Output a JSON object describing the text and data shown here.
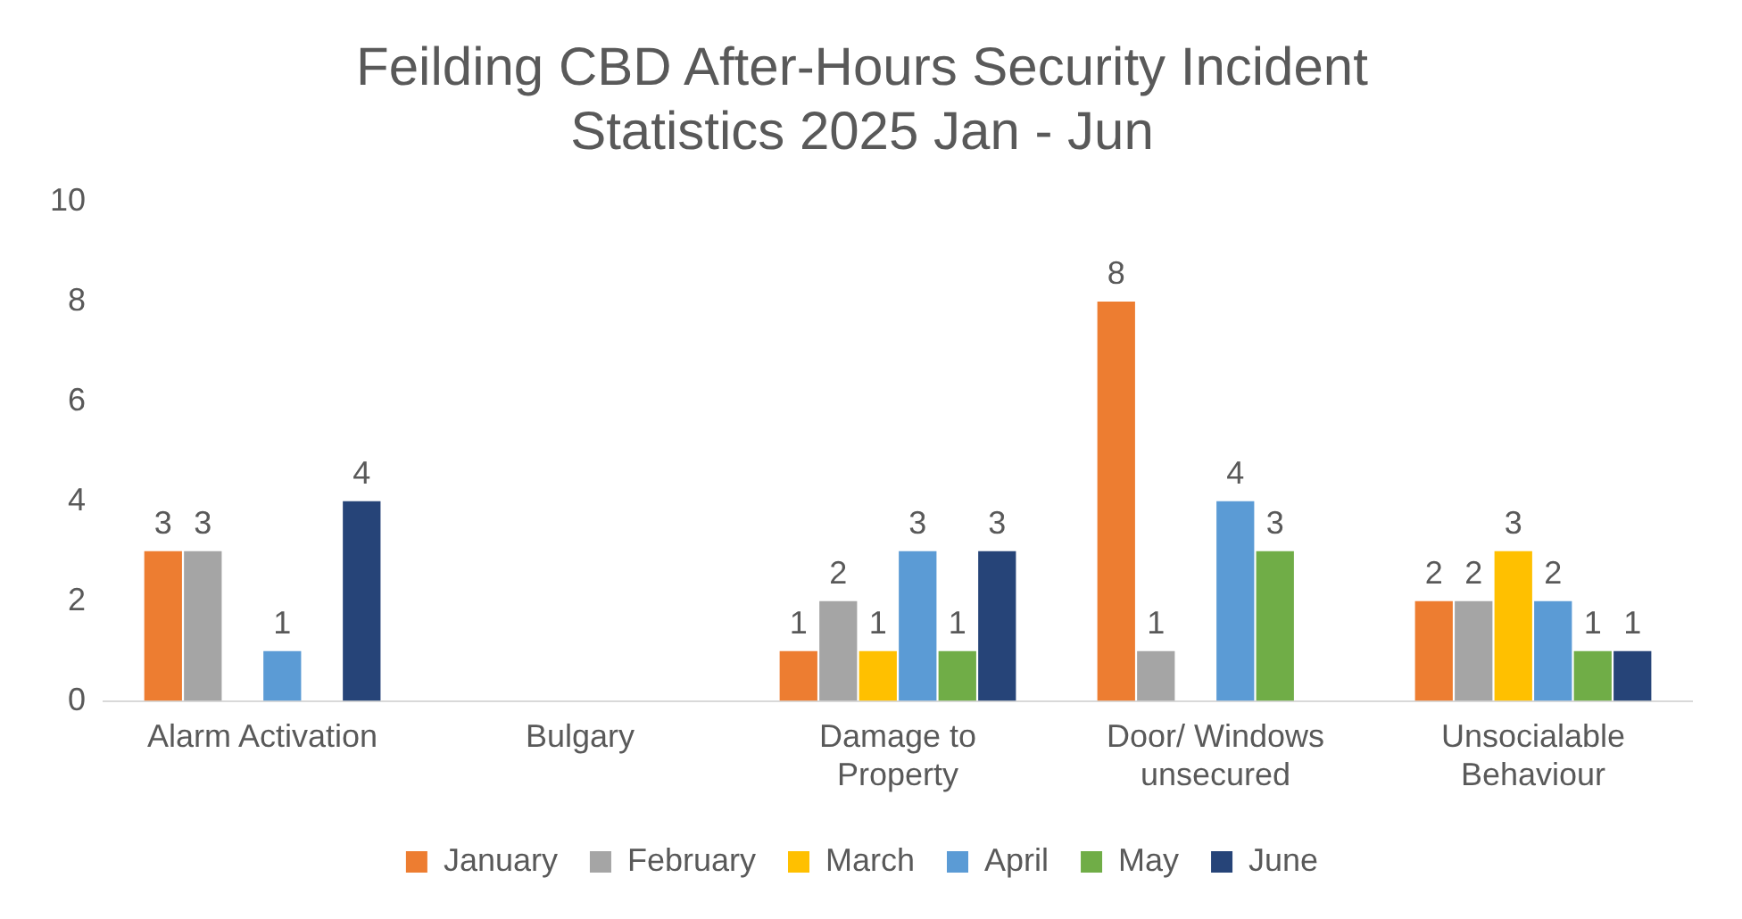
{
  "chart_data": {
    "type": "bar",
    "title": "Feilding CBD After-Hours Security Incident Statistics 2025 Jan - Jun",
    "categories": [
      "Alarm Activation",
      "Bulgary",
      "Damage to Property",
      "Door/ Windows unsecured",
      "Unsocialable Behaviour"
    ],
    "series": [
      {
        "name": "January",
        "color": "#ed7d31",
        "values": [
          3,
          null,
          1,
          8,
          2
        ]
      },
      {
        "name": "February",
        "color": "#a5a5a5",
        "values": [
          3,
          null,
          2,
          1,
          2
        ]
      },
      {
        "name": "March",
        "color": "#ffc000",
        "values": [
          null,
          null,
          1,
          null,
          3
        ]
      },
      {
        "name": "April",
        "color": "#5b9bd5",
        "values": [
          1,
          null,
          3,
          4,
          2
        ]
      },
      {
        "name": "May",
        "color": "#70ad47",
        "values": [
          null,
          null,
          1,
          3,
          1
        ]
      },
      {
        "name": "June",
        "color": "#264478",
        "values": [
          4,
          null,
          3,
          null,
          1
        ]
      }
    ],
    "ylim": [
      0,
      10
    ],
    "yticks": [
      0,
      2,
      4,
      6,
      8,
      10
    ],
    "grid": false,
    "legend": "bottom",
    "data_labels": true
  }
}
